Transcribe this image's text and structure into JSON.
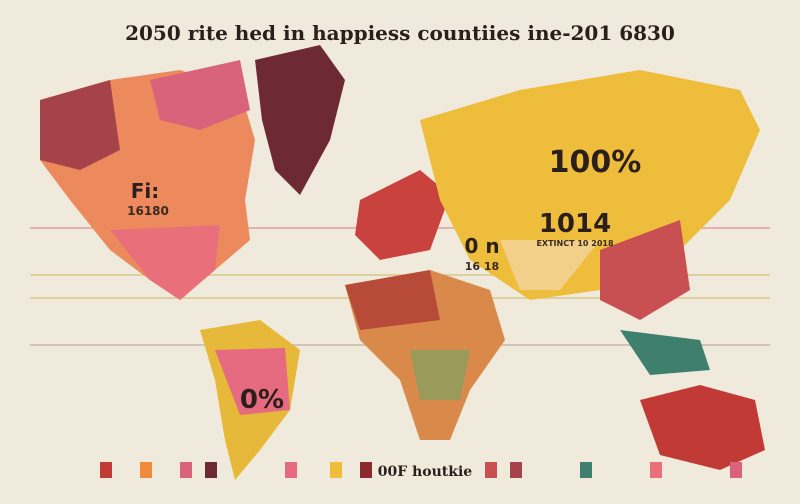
{
  "header": {
    "title": "2050 rite hed in happiess countiies ine-201 6830"
  },
  "labels": [
    {
      "text": "100%"
    },
    {
      "text": "1014"
    },
    {
      "text": "EXTINCT 10 2018"
    },
    {
      "text": "0 n"
    },
    {
      "text": "16 18"
    },
    {
      "text": "Fi:"
    },
    {
      "text": "16180"
    },
    {
      "text": "0%"
    }
  ],
  "legend": {
    "text": "00F houtkie"
  }
}
